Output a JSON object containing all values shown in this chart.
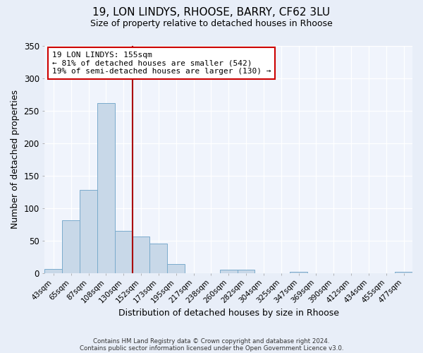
{
  "title1": "19, LON LINDYS, RHOOSE, BARRY, CF62 3LU",
  "title2": "Size of property relative to detached houses in Rhoose",
  "xlabel": "Distribution of detached houses by size in Rhoose",
  "ylabel": "Number of detached properties",
  "bin_labels": [
    "43sqm",
    "65sqm",
    "87sqm",
    "108sqm",
    "130sqm",
    "152sqm",
    "173sqm",
    "195sqm",
    "217sqm",
    "238sqm",
    "260sqm",
    "282sqm",
    "304sqm",
    "325sqm",
    "347sqm",
    "369sqm",
    "390sqm",
    "412sqm",
    "434sqm",
    "455sqm",
    "477sqm"
  ],
  "bar_heights": [
    6,
    81,
    128,
    262,
    65,
    57,
    46,
    14,
    0,
    0,
    5,
    5,
    0,
    0,
    2,
    0,
    0,
    0,
    0,
    0,
    2
  ],
  "bar_color": "#c8d8e8",
  "bar_edge_color": "#7aabcc",
  "vline_x_index": 5,
  "vline_color": "#aa0000",
  "annotation_line1": "19 LON LINDYS: 155sqm",
  "annotation_line2": "← 81% of detached houses are smaller (542)",
  "annotation_line3": "19% of semi-detached houses are larger (130) →",
  "annotation_box_color": "#cc0000",
  "ylim": [
    0,
    350
  ],
  "yticks": [
    0,
    50,
    100,
    150,
    200,
    250,
    300,
    350
  ],
  "footer1": "Contains HM Land Registry data © Crown copyright and database right 2024.",
  "footer2": "Contains public sector information licensed under the Open Government Licence v3.0.",
  "bg_color": "#e8eef8",
  "plot_bg_color": "#f0f4fc",
  "grid_color": "#ffffff"
}
